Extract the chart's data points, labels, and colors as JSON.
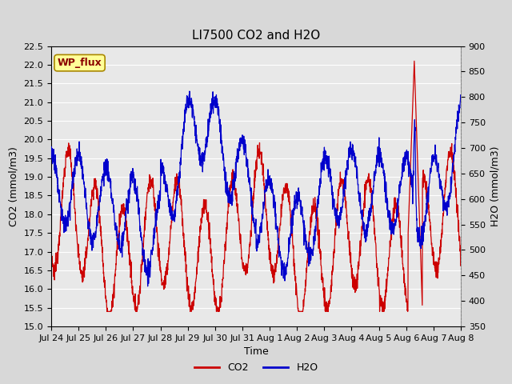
{
  "title": "LI7500 CO2 and H2O",
  "xlabel": "Time",
  "ylabel_left": "CO2 (mmol/m3)",
  "ylabel_right": "H2O (mmol/m3)",
  "co2_ylim": [
    15.0,
    22.5
  ],
  "h2o_ylim": [
    350,
    900
  ],
  "co2_yticks": [
    15.0,
    15.5,
    16.0,
    16.5,
    17.0,
    17.5,
    18.0,
    18.5,
    19.0,
    19.5,
    20.0,
    20.5,
    21.0,
    21.5,
    22.0,
    22.5
  ],
  "h2o_yticks": [
    350,
    400,
    450,
    500,
    550,
    600,
    650,
    700,
    750,
    800,
    850,
    900
  ],
  "co2_color": "#cc0000",
  "h2o_color": "#0000cc",
  "background_color": "#d8d8d8",
  "plot_bg_color": "#e8e8e8",
  "grid_color": "#ffffff",
  "annotation_text": "WP_flux",
  "annotation_bg": "#ffff99",
  "annotation_border": "#aa8800",
  "title_fontsize": 11,
  "label_fontsize": 9,
  "tick_fontsize": 8,
  "legend_fontsize": 9,
  "x_tick_labels": [
    "Jul 24",
    "Jul 25",
    "Jul 26",
    "Jul 27",
    "Jul 28",
    "Jul 29",
    "Jul 30",
    "Jul 31",
    "Aug 1",
    "Aug 2",
    "Aug 3",
    "Aug 4",
    "Aug 5",
    "Aug 6",
    "Aug 7",
    "Aug 8"
  ]
}
